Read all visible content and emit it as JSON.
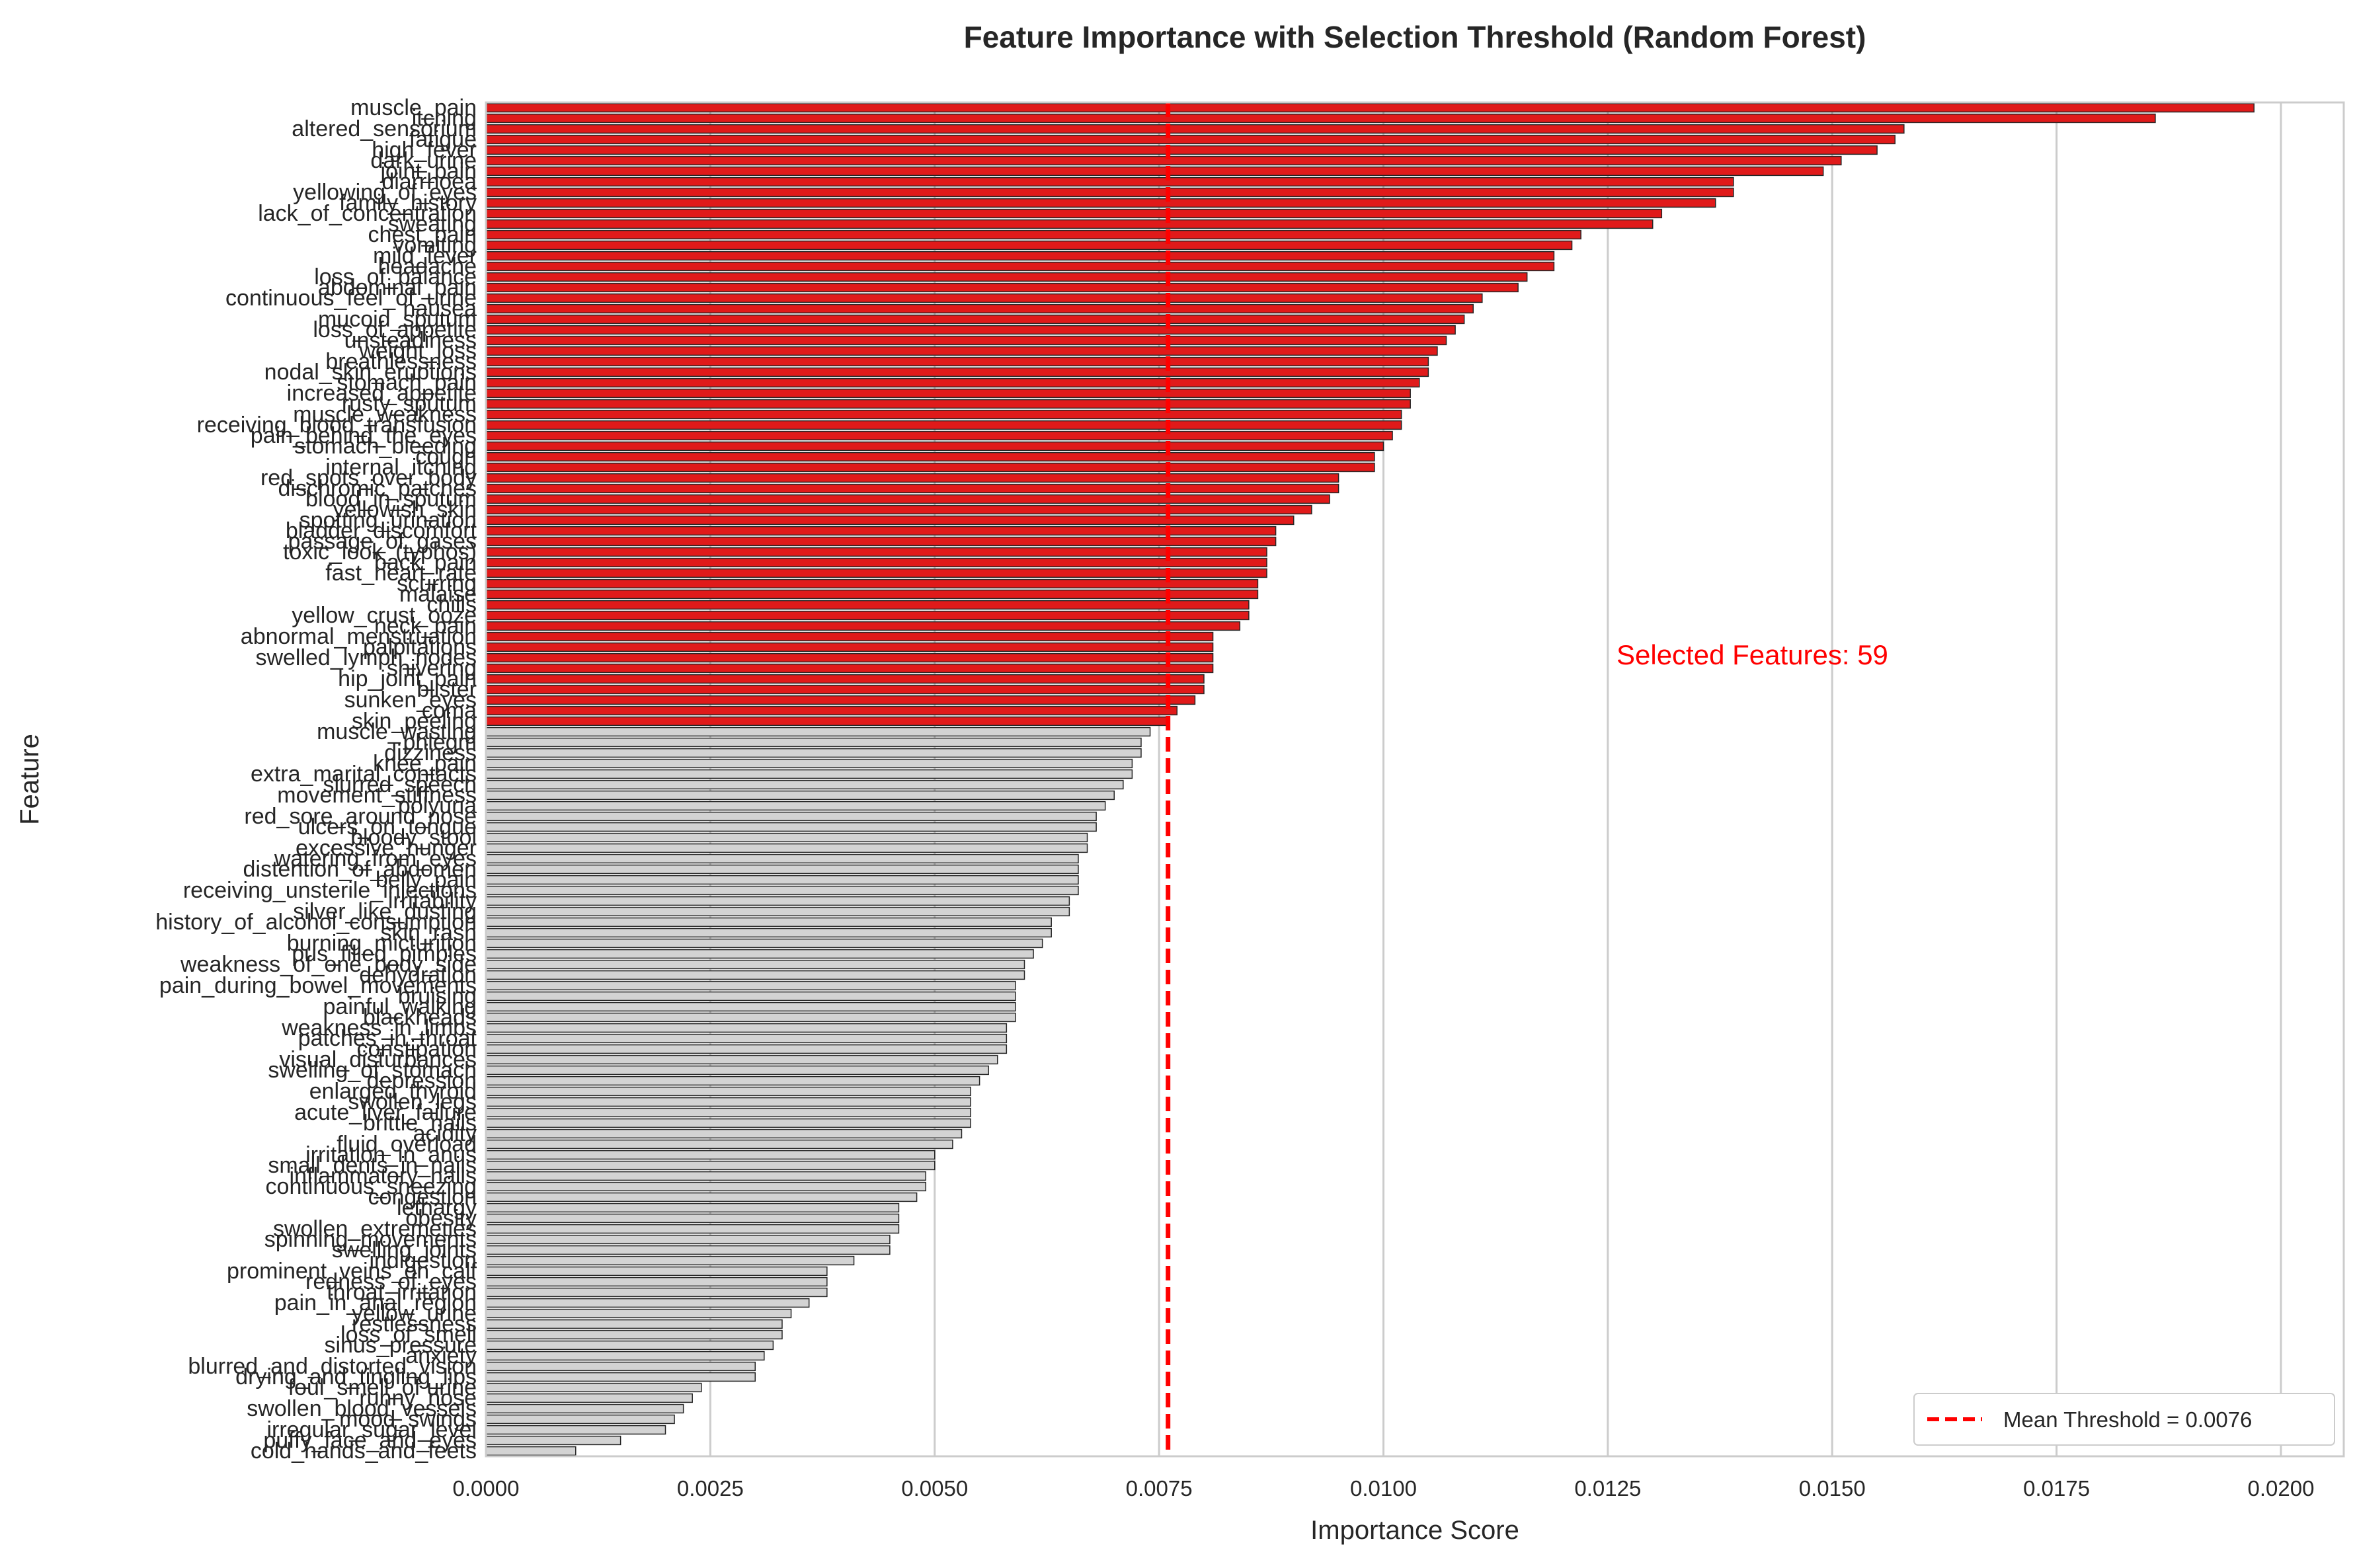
{
  "chart_data": {
    "type": "bar",
    "orientation": "horizontal",
    "title": "Feature Importance with Selection Threshold (Random Forest)",
    "xlabel": "Importance Score",
    "ylabel": "Feature",
    "xlim": [
      0,
      0.0207
    ],
    "xticks": [
      "0.0000",
      "0.0025",
      "0.0050",
      "0.0075",
      "0.0100",
      "0.0125",
      "0.0150",
      "0.0175",
      "0.0200"
    ],
    "xtick_values": [
      0,
      0.0025,
      0.005,
      0.0075,
      0.01,
      0.0125,
      0.015,
      0.0175,
      0.02
    ],
    "grid": "vertical",
    "threshold": 0.0076,
    "threshold_color": "#ff0000",
    "selected_color": "#e01a1a",
    "unselected_color": "#d3d3d3",
    "legend": {
      "label": "Mean Threshold = 0.0076",
      "placement": "lower-right"
    },
    "annotation": {
      "text": "Selected Features: 59",
      "x": 0.0145,
      "color": "#ff0000"
    },
    "categories": [
      "muscle_pain",
      "itching",
      "altered_sensorium",
      "fatigue",
      "high_fever",
      "dark_urine",
      "joint_pain",
      "diarrhoea",
      "yellowing_of_eyes",
      "family_history",
      "lack_of_concentration",
      "sweating",
      "chest_pain",
      "vomiting",
      "mild_fever",
      "headache",
      "loss_of_balance",
      "abdominal_pain",
      "continuous_feel_of_urine",
      "nausea",
      "mucoid_sputum",
      "loss_of_appetite",
      "unsteadiness",
      "weight_loss",
      "breathlessness",
      "nodal_skin_eruptions",
      "stomach_pain",
      "increased_appetite",
      "rusty_sputum",
      "muscle_weakness",
      "receiving_blood_transfusion",
      "pain_behind_the_eyes",
      "stomach_bleeding",
      "cough",
      "internal_itching",
      "red_spots_over_body",
      "dischromic_patches",
      "blood_in_sputum",
      "yellowish_skin",
      "spotting_urination",
      "bladder_discomfort",
      "passage_of_gases",
      "toxic_look_(typhos)",
      "back_pain",
      "fast_heart_rate",
      "scurring",
      "malaise",
      "chills",
      "yellow_crust_ooze",
      "neck_pain",
      "abnormal_menstruation",
      "palpitations",
      "swelled_lymph_nodes",
      "shivering",
      "hip_joint_pain",
      "blister",
      "sunken_eyes",
      "coma",
      "skin_peeling",
      "muscle_wasting",
      "phlegm",
      "dizziness",
      "knee_pain",
      "extra_marital_contacts",
      "slurred_speech",
      "movement_stiffness",
      "polyuria",
      "red_sore_around_nose",
      "ulcers_on_tongue",
      "bloody_stool",
      "excessive_hunger",
      "watering_from_eyes",
      "distention_of_abdomen",
      "belly_pain",
      "receiving_unsterile_injections",
      "irritability",
      "silver_like_dusting",
      "history_of_alcohol_consumption",
      "skin_rash",
      "burning_micturition",
      "pus_filled_pimples",
      "weakness_of_one_body_side",
      "dehydration",
      "pain_during_bowel_movements",
      "bruising",
      "painful_walking",
      "blackheads",
      "weakness_in_limbs",
      "patches_in_throat",
      "constipation",
      "visual_disturbances",
      "swelling_of_stomach",
      "depression",
      "enlarged_thyroid",
      "swollen_legs",
      "acute_liver_failure",
      "brittle_nails",
      "acidity",
      "fluid_overload",
      "irritation_in_anus",
      "small_dents_in_nails",
      "inflammatory_nails",
      "continuous_sneezing",
      "congestion",
      "lethargy",
      "obesity",
      "swollen_extremeties",
      "spinning_movements",
      "swelling_joints",
      "indigestion",
      "prominent_veins_on_calf",
      "redness_of_eyes",
      "throat_irritation",
      "pain_in_anal_region",
      "yellow_urine",
      "restlessness",
      "loss_of_smell",
      "sinus_pressure",
      "anxiety",
      "blurred_and_distorted_vision",
      "drying_and_tingling_lips",
      "foul_smell_of urine",
      "runny_nose",
      "swollen_blood_vessels",
      "mood_swings",
      "irregular_sugar_level",
      "puffy_face_and_eyes",
      "cold_hands_and_feets"
    ],
    "values": [
      0.0197,
      0.0186,
      0.0158,
      0.0157,
      0.0155,
      0.0151,
      0.0149,
      0.0139,
      0.0139,
      0.0137,
      0.0131,
      0.013,
      0.0122,
      0.0121,
      0.0119,
      0.0119,
      0.0116,
      0.0115,
      0.0111,
      0.011,
      0.0109,
      0.0108,
      0.0107,
      0.0106,
      0.0105,
      0.0105,
      0.0104,
      0.0103,
      0.0103,
      0.0102,
      0.0102,
      0.0101,
      0.01,
      0.0099,
      0.0099,
      0.0095,
      0.0095,
      0.0094,
      0.0092,
      0.009,
      0.0088,
      0.0088,
      0.0087,
      0.0087,
      0.0087,
      0.0086,
      0.0086,
      0.0085,
      0.0085,
      0.0084,
      0.0081,
      0.0081,
      0.0081,
      0.0081,
      0.008,
      0.008,
      0.0079,
      0.0077,
      0.0076,
      0.0074,
      0.0073,
      0.0073,
      0.0072,
      0.0072,
      0.0071,
      0.007,
      0.0069,
      0.0068,
      0.0068,
      0.0067,
      0.0067,
      0.0066,
      0.0066,
      0.0066,
      0.0066,
      0.0065,
      0.0065,
      0.0063,
      0.0063,
      0.0062,
      0.0061,
      0.006,
      0.006,
      0.0059,
      0.0059,
      0.0059,
      0.0059,
      0.0058,
      0.0058,
      0.0058,
      0.0057,
      0.0056,
      0.0055,
      0.0054,
      0.0054,
      0.0054,
      0.0054,
      0.0053,
      0.0052,
      0.005,
      0.005,
      0.0049,
      0.0049,
      0.0048,
      0.0046,
      0.0046,
      0.0046,
      0.0045,
      0.0045,
      0.0041,
      0.0038,
      0.0038,
      0.0038,
      0.0036,
      0.0034,
      0.0033,
      0.0033,
      0.0032,
      0.0031,
      0.003,
      0.003,
      0.0024,
      0.0023,
      0.0022,
      0.0021,
      0.002,
      0.0015,
      0.001
    ],
    "selected_count": 59
  }
}
